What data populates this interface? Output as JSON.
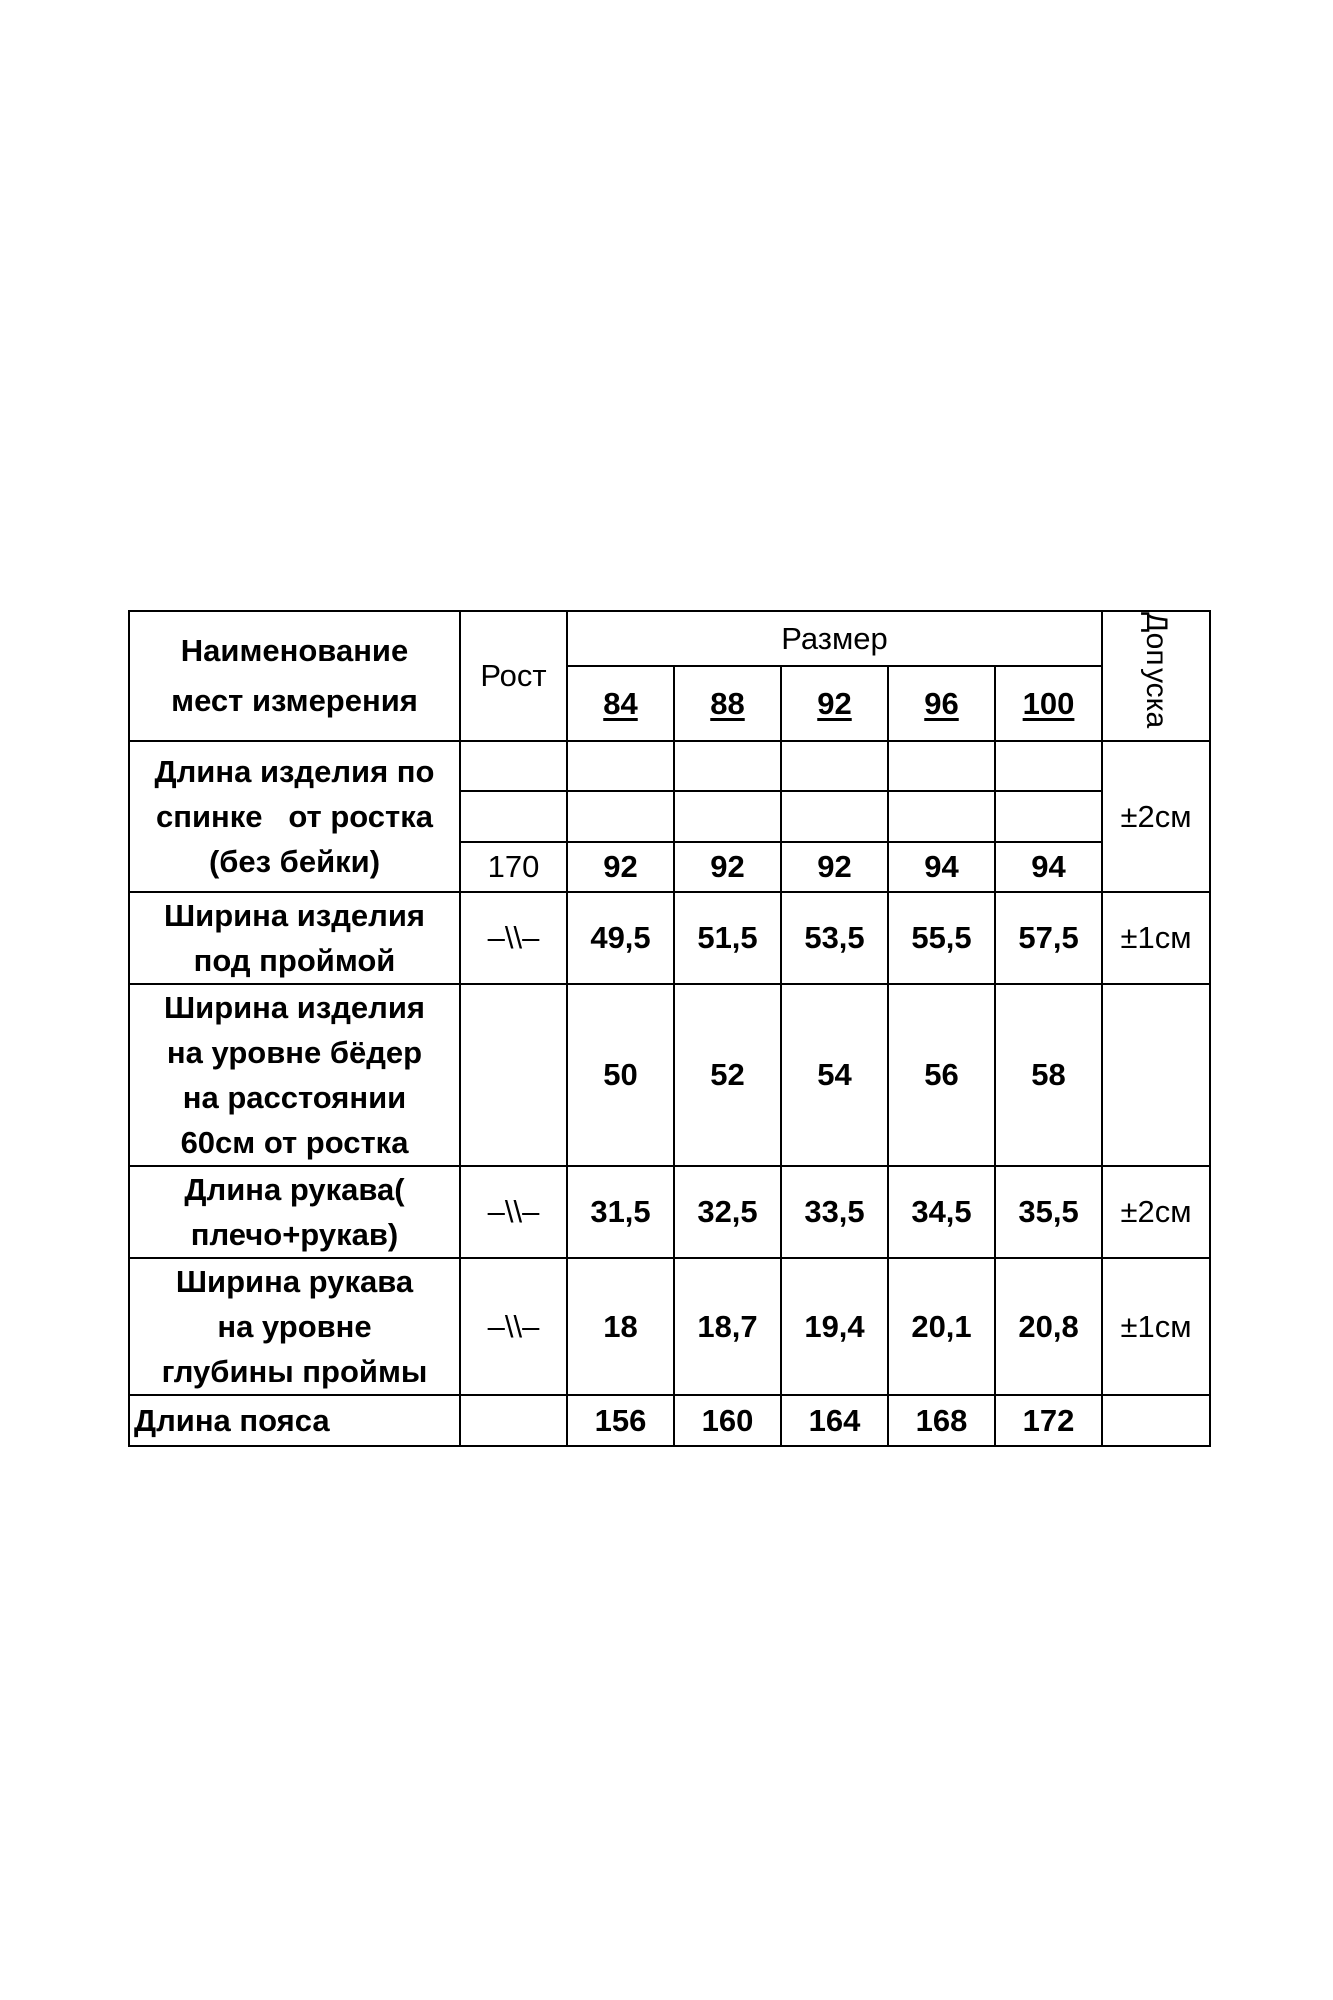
{
  "header": {
    "name_col": [
      "Наименование",
      "мест измерения"
    ],
    "height_col": "Рост",
    "size_group": "Размер",
    "sizes": [
      "84",
      "88",
      "92",
      "96",
      "100"
    ],
    "tolerance_col": [
      "Доп",
      "уска"
    ]
  },
  "rows": [
    {
      "name": [
        "Длина изделия по",
        "спинке   от ростка",
        "(без бейки)"
      ],
      "height": "170",
      "values": [
        "92",
        "92",
        "92",
        "94",
        "94"
      ],
      "tolerance": "±2см"
    },
    {
      "name": [
        "Ширина изделия",
        "под проймой"
      ],
      "height": "–\\\\–",
      "values": [
        "49,5",
        "51,5",
        "53,5",
        "55,5",
        "57,5"
      ],
      "tolerance": "±1см"
    },
    {
      "name": [
        "Ширина изделия",
        "на уровне бёдер",
        "на расстоянии",
        "60см от ростка"
      ],
      "height": "",
      "values": [
        "50",
        "52",
        "54",
        "56",
        "58"
      ],
      "tolerance": ""
    },
    {
      "name": [
        "Длина рукава(",
        "плечо+рукав)"
      ],
      "height": "–\\\\–",
      "values": [
        "31,5",
        "32,5",
        "33,5",
        "34,5",
        "35,5"
      ],
      "tolerance": "±2см"
    },
    {
      "name": [
        "Ширина рукава",
        "на уровне",
        "глубины проймы"
      ],
      "height": "–\\\\–",
      "values": [
        "18",
        "18,7",
        "19,4",
        "20,1",
        "20,8"
      ],
      "tolerance": "±1см"
    },
    {
      "name": [
        "Длина пояса"
      ],
      "height": "",
      "values": [
        "156",
        "160",
        "164",
        "168",
        "172"
      ],
      "tolerance": ""
    }
  ]
}
